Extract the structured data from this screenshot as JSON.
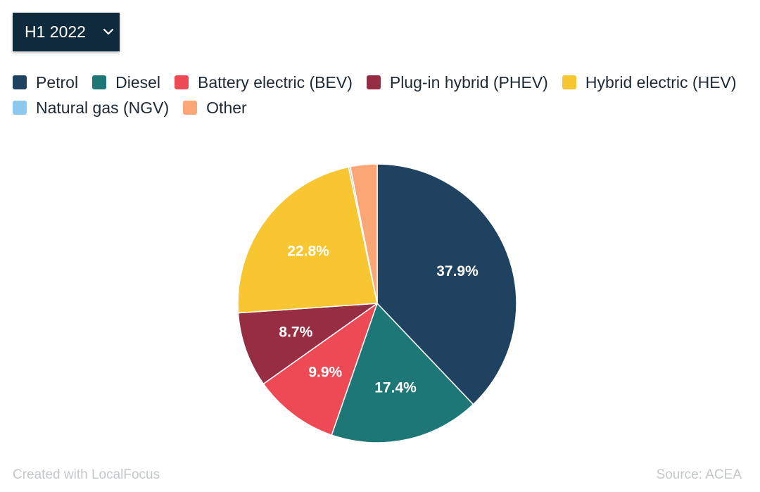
{
  "period_selector": {
    "label": "H1 2022",
    "icon": "chevron-down-icon"
  },
  "chart_data": {
    "type": "pie",
    "slices": [
      {
        "name": "Petrol",
        "value": 37.9,
        "label": "37.9%",
        "color": "#1e4260"
      },
      {
        "name": "Diesel",
        "value": 17.4,
        "label": "17.4%",
        "color": "#1e7777"
      },
      {
        "name": "Battery electric (BEV)",
        "value": 9.9,
        "label": "9.9%",
        "color": "#ee4a55"
      },
      {
        "name": "Plug-in hybrid (PHEV)",
        "value": 8.7,
        "label": "8.7%",
        "color": "#962d42"
      },
      {
        "name": "Hybrid electric (HEV)",
        "value": 22.8,
        "label": "22.8%",
        "color": "#f8c630"
      },
      {
        "name": "Natural gas (NGV)",
        "value": 0.2,
        "label": "",
        "color": "#8ec8ee"
      },
      {
        "name": "Other",
        "value": 3.1,
        "label": "",
        "color": "#fca676"
      }
    ],
    "legend_placement": "top-left"
  },
  "footer": {
    "credit": "Created with LocalFocus",
    "source": "Source: ACEA"
  }
}
